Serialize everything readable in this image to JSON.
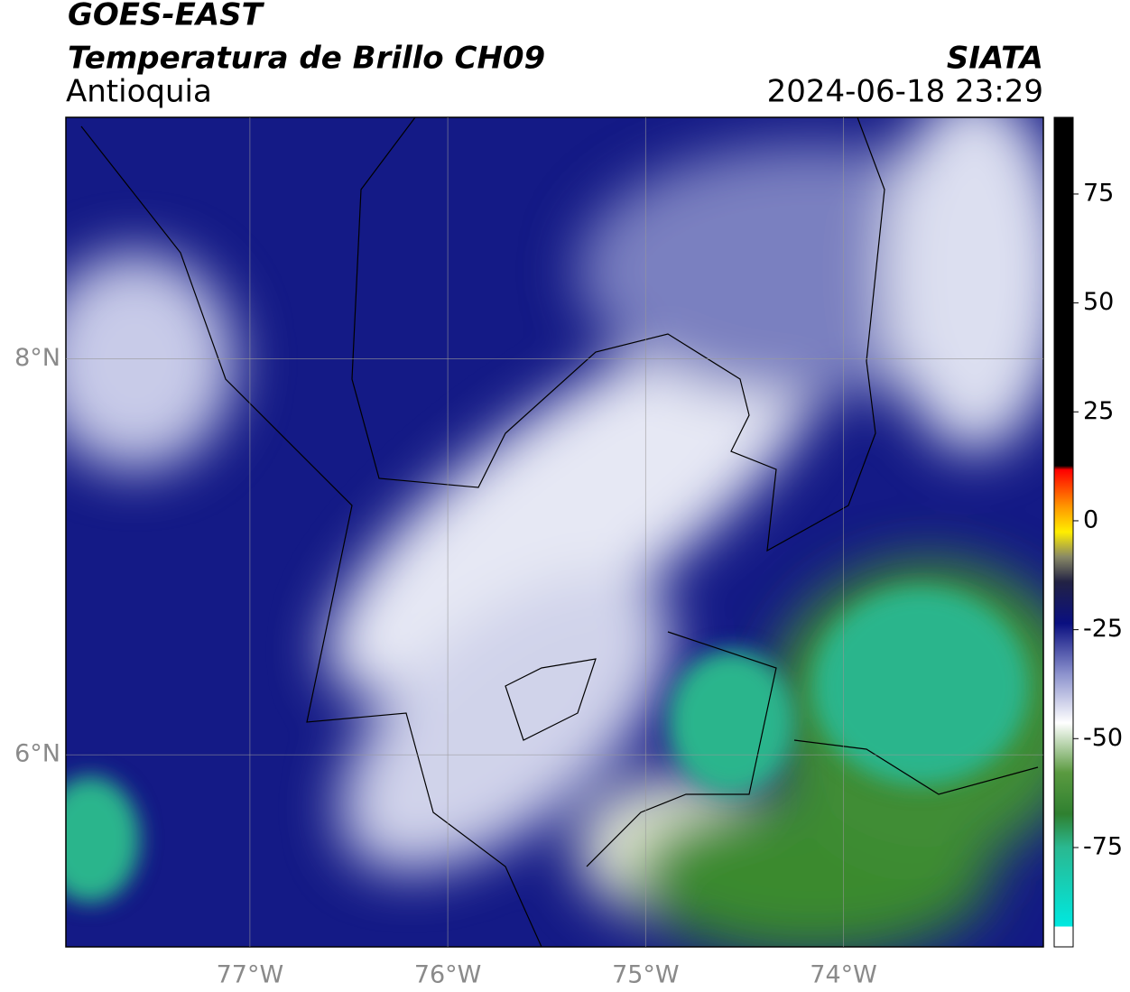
{
  "header": {
    "title": "GOES-EAST",
    "subtitle": "Temperatura de Brillo CH09",
    "region": "Antioquia",
    "source": "SIATA",
    "timestamp": "2024-06-18 23:29"
  },
  "map": {
    "xlim": [
      -77.93,
      -72.99
    ],
    "ylim": [
      5.03,
      9.22
    ],
    "xticks": [
      {
        "value": -77,
        "label": "77°W"
      },
      {
        "value": -76,
        "label": "76°W"
      },
      {
        "value": -75,
        "label": "75°W"
      },
      {
        "value": -74,
        "label": "74°W"
      }
    ],
    "yticks": [
      {
        "value": 8,
        "label": "8°N"
      },
      {
        "value": 6,
        "label": "6°N"
      }
    ],
    "grid": true
  },
  "colorbar": {
    "lim": [
      -97.8,
      92.6
    ],
    "ticks": [
      75,
      50,
      25,
      0,
      -25,
      -50,
      -75
    ]
  }
}
